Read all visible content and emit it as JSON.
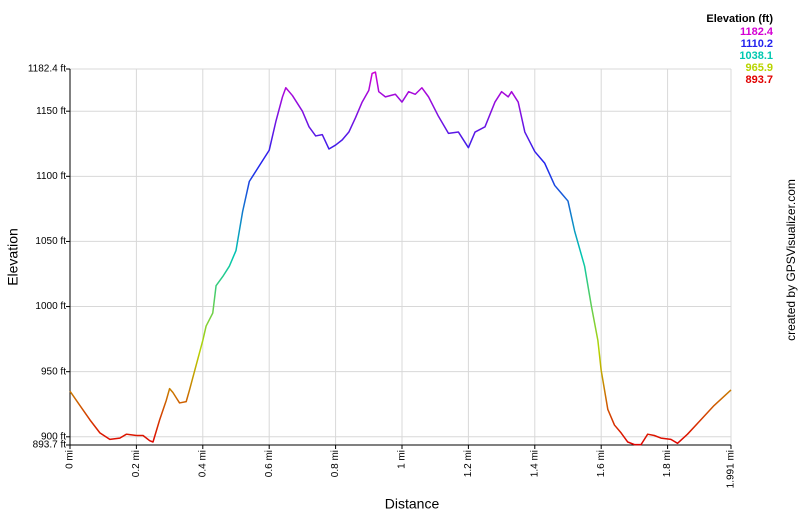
{
  "chart_data": {
    "type": "line",
    "x_label": "Distance",
    "y_label": "Elevation",
    "credit": "created by GPSVisualizer.com",
    "legend_title": "Elevation (ft)",
    "colorscale": [
      {
        "value": 1182.4,
        "color": "#d400d4"
      },
      {
        "value": 1110.2,
        "color": "#2222ee"
      },
      {
        "value": 1038.1,
        "color": "#00c8b0"
      },
      {
        "value": 965.9,
        "color": "#b8d400"
      },
      {
        "value": 893.7,
        "color": "#e00000"
      }
    ],
    "xlim": [
      0,
      1.991
    ],
    "ylim": [
      893.7,
      1182.4
    ],
    "xticks": [
      {
        "value": 0,
        "label": "0 mi"
      },
      {
        "value": 0.2,
        "label": "0.2 mi"
      },
      {
        "value": 0.4,
        "label": "0.4 mi"
      },
      {
        "value": 0.6,
        "label": "0.6 mi"
      },
      {
        "value": 0.8,
        "label": "0.8 mi"
      },
      {
        "value": 1,
        "label": "1 mi"
      },
      {
        "value": 1.2,
        "label": "1.2 mi"
      },
      {
        "value": 1.4,
        "label": "1.4 mi"
      },
      {
        "value": 1.6,
        "label": "1.6 mi"
      },
      {
        "value": 1.8,
        "label": "1.8 mi"
      },
      {
        "value": 1.991,
        "label": "1.991 mi"
      }
    ],
    "yticks": [
      {
        "value": 893.7,
        "label": "893.7 ft"
      },
      {
        "value": 900,
        "label": "900 ft"
      },
      {
        "value": 950,
        "label": "950 ft"
      },
      {
        "value": 1000,
        "label": "1000 ft"
      },
      {
        "value": 1050,
        "label": "1050 ft"
      },
      {
        "value": 1100,
        "label": "1100 ft"
      },
      {
        "value": 1150,
        "label": "1150 ft"
      },
      {
        "value": 1182.4,
        "label": "1182.4 ft"
      }
    ],
    "grid": true,
    "x": [
      0,
      0.03,
      0.06,
      0.09,
      0.12,
      0.15,
      0.17,
      0.2,
      0.22,
      0.24,
      0.25,
      0.27,
      0.29,
      0.3,
      0.31,
      0.32,
      0.33,
      0.35,
      0.36,
      0.38,
      0.4,
      0.41,
      0.43,
      0.44,
      0.46,
      0.48,
      0.5,
      0.52,
      0.54,
      0.57,
      0.6,
      0.62,
      0.64,
      0.65,
      0.67,
      0.7,
      0.72,
      0.74,
      0.76,
      0.78,
      0.8,
      0.82,
      0.84,
      0.86,
      0.88,
      0.9,
      0.91,
      0.92,
      0.93,
      0.95,
      0.98,
      1.0,
      1.02,
      1.04,
      1.06,
      1.08,
      1.11,
      1.14,
      1.17,
      1.2,
      1.22,
      1.25,
      1.28,
      1.3,
      1.32,
      1.33,
      1.35,
      1.37,
      1.4,
      1.43,
      1.46,
      1.48,
      1.5,
      1.52,
      1.55,
      1.57,
      1.59,
      1.6,
      1.62,
      1.64,
      1.66,
      1.68,
      1.7,
      1.72,
      1.74,
      1.76,
      1.78,
      1.81,
      1.83,
      1.86,
      1.9,
      1.94,
      1.991
    ],
    "values": [
      935,
      924,
      913,
      903,
      898,
      899,
      902,
      901,
      901,
      897,
      896,
      913,
      928,
      937,
      934,
      930,
      926,
      927,
      936,
      955,
      974,
      985,
      995,
      1016,
      1023,
      1031,
      1043,
      1073,
      1096,
      1108,
      1120,
      1142,
      1161,
      1168,
      1162,
      1150,
      1138,
      1131,
      1132,
      1121,
      1124,
      1128,
      1134,
      1145,
      1157,
      1166,
      1179,
      1180,
      1165,
      1161,
      1163,
      1157,
      1165,
      1163,
      1168,
      1161,
      1146,
      1133,
      1134,
      1122,
      1134,
      1138,
      1157,
      1165,
      1161,
      1165,
      1157,
      1134,
      1119,
      1110,
      1093,
      1087,
      1081,
      1058,
      1031,
      1001,
      974,
      951,
      921,
      909,
      903,
      896,
      894,
      894,
      902,
      901,
      899,
      898,
      895,
      902,
      913,
      924,
      936
    ]
  }
}
